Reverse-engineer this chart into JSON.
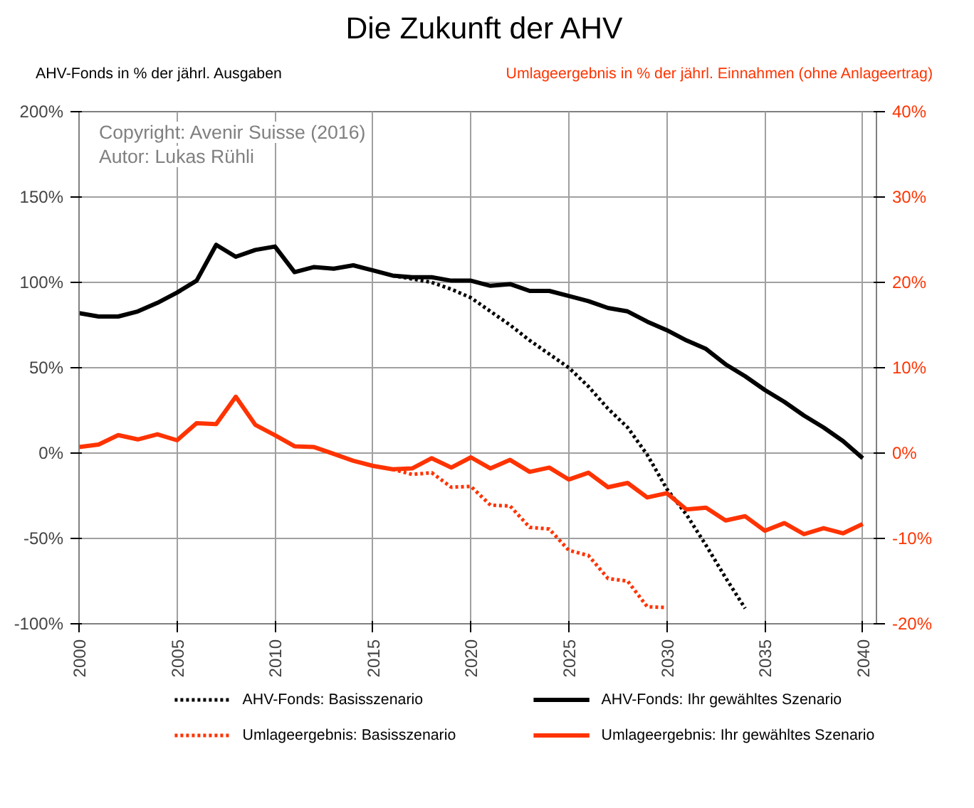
{
  "chart_data": {
    "type": "line",
    "title": "Die Zukunft der AHV",
    "ylabel": "AHV-Fonds in % der jährl. Ausgaben",
    "y2label": "Umlageergebnis in % der jährl. Einnahmen (ohne Anlageertrag)",
    "annotations": [
      "Copyright: Avenir Suisse (2016)",
      "Autor: Lukas Rühli"
    ],
    "xlim": [
      2000,
      2040.7
    ],
    "xticks": [
      2000,
      2005,
      2010,
      2015,
      2020,
      2025,
      2030,
      2035,
      2040
    ],
    "ylim": [
      -100,
      200
    ],
    "yticks": [
      {
        "value": -100,
        "label": "-100%"
      },
      {
        "value": -50,
        "label": "-50%"
      },
      {
        "value": 0,
        "label": "0%"
      },
      {
        "value": 50,
        "label": "50%"
      },
      {
        "value": 100,
        "label": "100%"
      },
      {
        "value": 150,
        "label": "150%"
      },
      {
        "value": 200,
        "label": "200%"
      }
    ],
    "y2lim": [
      -20,
      40
    ],
    "y2ticks": [
      {
        "value": -20,
        "label": "-20%"
      },
      {
        "value": -10,
        "label": "-10%"
      },
      {
        "value": 0,
        "label": "0%"
      },
      {
        "value": 10,
        "label": "10%"
      },
      {
        "value": 20,
        "label": "20%"
      },
      {
        "value": 30,
        "label": "30%"
      },
      {
        "value": 40,
        "label": "40%"
      }
    ],
    "grid": true,
    "legend": "bottom",
    "series": [
      {
        "name": "AHV-Fonds: Basisszenario",
        "color": "#000000",
        "line_style": "dotted",
        "x": [
          2016,
          2017,
          2018,
          2019,
          2020,
          2021,
          2022,
          2023,
          2024,
          2025,
          2026,
          2027,
          2028,
          2029,
          2030,
          2031,
          2032,
          2033,
          2034
        ],
        "values": [
          104,
          102,
          100,
          96,
          91,
          83,
          75,
          66,
          58,
          50,
          39,
          26,
          15,
          -1,
          -21,
          -36,
          -54,
          -73,
          -91
        ]
      },
      {
        "name": "AHV-Fonds: Ihr gewähltes Szenario",
        "color": "#000000",
        "line_style": "solid",
        "x": [
          2000,
          2001,
          2002,
          2003,
          2004,
          2005,
          2006,
          2007,
          2008,
          2009,
          2010,
          2011,
          2012,
          2013,
          2014,
          2015,
          2016,
          2017,
          2018,
          2019,
          2020,
          2021,
          2022,
          2023,
          2024,
          2025,
          2026,
          2027,
          2028,
          2029,
          2030,
          2031,
          2032,
          2033,
          2034,
          2035,
          2036,
          2037,
          2038,
          2039,
          2040
        ],
        "values": [
          82,
          80,
          80,
          83,
          88,
          94,
          101,
          122,
          115,
          119,
          121,
          106,
          109,
          108,
          110,
          107,
          104,
          103,
          103,
          101,
          101,
          98,
          99,
          95,
          95,
          92,
          89,
          85,
          83,
          77,
          72,
          66,
          61,
          52,
          45,
          37,
          30,
          22,
          15,
          7,
          -3
        ]
      },
      {
        "name": "Umlageergebnis: Basisszenario",
        "color": "#ff3300",
        "line_style": "dotted",
        "axis": "y2",
        "x": [
          2016,
          2017,
          2018,
          2019,
          2020,
          2021,
          2022,
          2023,
          2024,
          2025,
          2026,
          2027,
          2028,
          2029,
          2030
        ],
        "values": [
          -1.9,
          -2.5,
          -2.3,
          -4.0,
          -3.9,
          -6.1,
          -6.2,
          -8.7,
          -8.9,
          -11.4,
          -12.0,
          -14.7,
          -15.0,
          -18.0,
          -18.1
        ]
      },
      {
        "name": "Umlageergebnis: Ihr gewähltes Szenario",
        "color": "#ff3300",
        "line_style": "solid",
        "axis": "y2",
        "x": [
          2000,
          2001,
          2002,
          2003,
          2004,
          2005,
          2006,
          2007,
          2008,
          2009,
          2010,
          2011,
          2012,
          2013,
          2014,
          2015,
          2016,
          2017,
          2018,
          2019,
          2020,
          2021,
          2022,
          2023,
          2024,
          2025,
          2026,
          2027,
          2028,
          2029,
          2030,
          2031,
          2032,
          2033,
          2034,
          2035,
          2036,
          2037,
          2038,
          2039,
          2040
        ],
        "values": [
          0.7,
          1.0,
          2.1,
          1.6,
          2.2,
          1.5,
          3.5,
          3.4,
          6.6,
          3.3,
          2.1,
          0.8,
          0.7,
          -0.1,
          -0.9,
          -1.5,
          -1.9,
          -1.8,
          -0.6,
          -1.7,
          -0.5,
          -1.8,
          -0.8,
          -2.2,
          -1.7,
          -3.1,
          -2.3,
          -4.0,
          -3.5,
          -5.2,
          -4.7,
          -6.6,
          -6.4,
          -7.9,
          -7.4,
          -9.1,
          -8.2,
          -9.5,
          -8.8,
          -9.4,
          -8.3
        ]
      }
    ]
  }
}
